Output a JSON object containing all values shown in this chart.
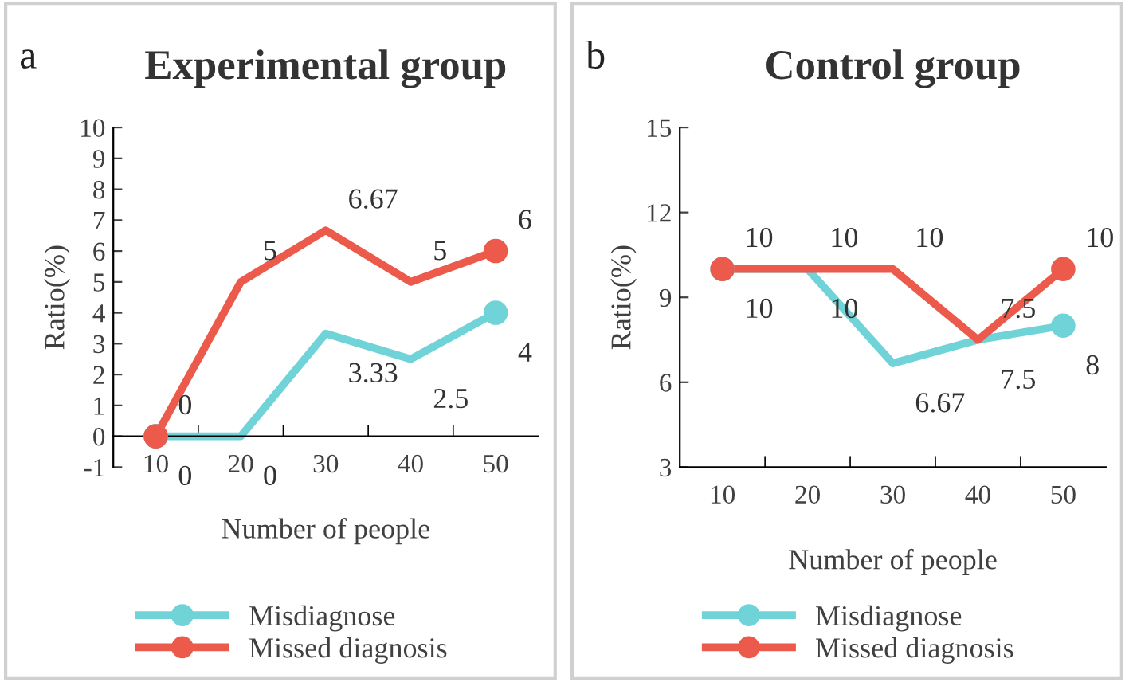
{
  "chart_data": [
    {
      "type": "line",
      "title": "Experimental group",
      "xlabel": "Number of people",
      "ylabel": "Ratio(%)",
      "annotations": [
        "a"
      ],
      "categories": [
        "10",
        "20",
        "30",
        "40",
        "50"
      ],
      "series": [
        {
          "name": "Misdiagnose",
          "color": "#6fd3d8",
          "values": [
            0,
            0,
            3.33,
            2.5,
            4
          ]
        },
        {
          "name": "Missed diagnosis",
          "color": "#ec5a4c",
          "values": [
            0,
            5,
            6.67,
            5,
            6
          ]
        }
      ],
      "ylim": [
        -1,
        10
      ],
      "yticks": [
        -1,
        0,
        1,
        2,
        3,
        4,
        5,
        6,
        7,
        8,
        9,
        10
      ],
      "data_labels": true,
      "legend": "bottom",
      "line_style": "solid"
    },
    {
      "type": "line",
      "title": "Control group",
      "xlabel": "Number of people",
      "ylabel": "Ratio(%)",
      "annotations": [
        "b"
      ],
      "categories": [
        "10",
        "20",
        "30",
        "40",
        "50"
      ],
      "series": [
        {
          "name": "Misdiagnose",
          "color": "#6fd3d8",
          "values": [
            10,
            10,
            6.67,
            7.5,
            8
          ]
        },
        {
          "name": "Missed diagnosis",
          "color": "#ec5a4c",
          "values": [
            10,
            10,
            10,
            7.5,
            10
          ]
        }
      ],
      "ylim": [
        3,
        15
      ],
      "yticks": [
        3,
        6,
        9,
        12,
        15
      ],
      "data_labels": true,
      "legend": "bottom",
      "line_style": "solid"
    }
  ]
}
